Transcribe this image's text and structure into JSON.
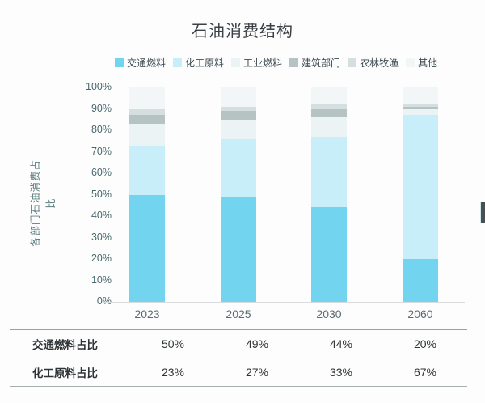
{
  "chart_data": {
    "type": "bar",
    "stacked": true,
    "title": "石油消费结构",
    "ylabel": "各部门石油消费占比",
    "xlabel": "",
    "ylim": [
      0,
      100
    ],
    "grid": false,
    "legend_position": "top",
    "yticks": [
      "0%",
      "10%",
      "20%",
      "30%",
      "40%",
      "50%",
      "60%",
      "70%",
      "80%",
      "90%",
      "100%"
    ],
    "categories": [
      "2023",
      "2025",
      "2030",
      "2060"
    ],
    "series": [
      {
        "name": "交通燃料",
        "values": [
          50,
          49,
          44,
          20
        ],
        "color": "#72D4EF"
      },
      {
        "name": "化工原料",
        "values": [
          23,
          27,
          33,
          67
        ],
        "color": "#C7EEF9"
      },
      {
        "name": "工业燃料",
        "values": [
          10,
          9,
          9,
          3
        ],
        "color": "#EBF3F5"
      },
      {
        "name": "建筑部门",
        "values": [
          4,
          4,
          4,
          1
        ],
        "color": "#B5C4C2"
      },
      {
        "name": "农林牧渔",
        "values": [
          3,
          2,
          2,
          1
        ],
        "color": "#D6DFDF"
      },
      {
        "name": "其他",
        "values": [
          10,
          9,
          8,
          8
        ],
        "color": "#F2F6F7"
      }
    ]
  },
  "table": {
    "rows": [
      {
        "label": "交通燃料占比",
        "values": [
          "50%",
          "49%",
          "44%",
          "20%"
        ]
      },
      {
        "label": "化工原料占比",
        "values": [
          "23%",
          "27%",
          "33%",
          "67%"
        ]
      }
    ]
  }
}
